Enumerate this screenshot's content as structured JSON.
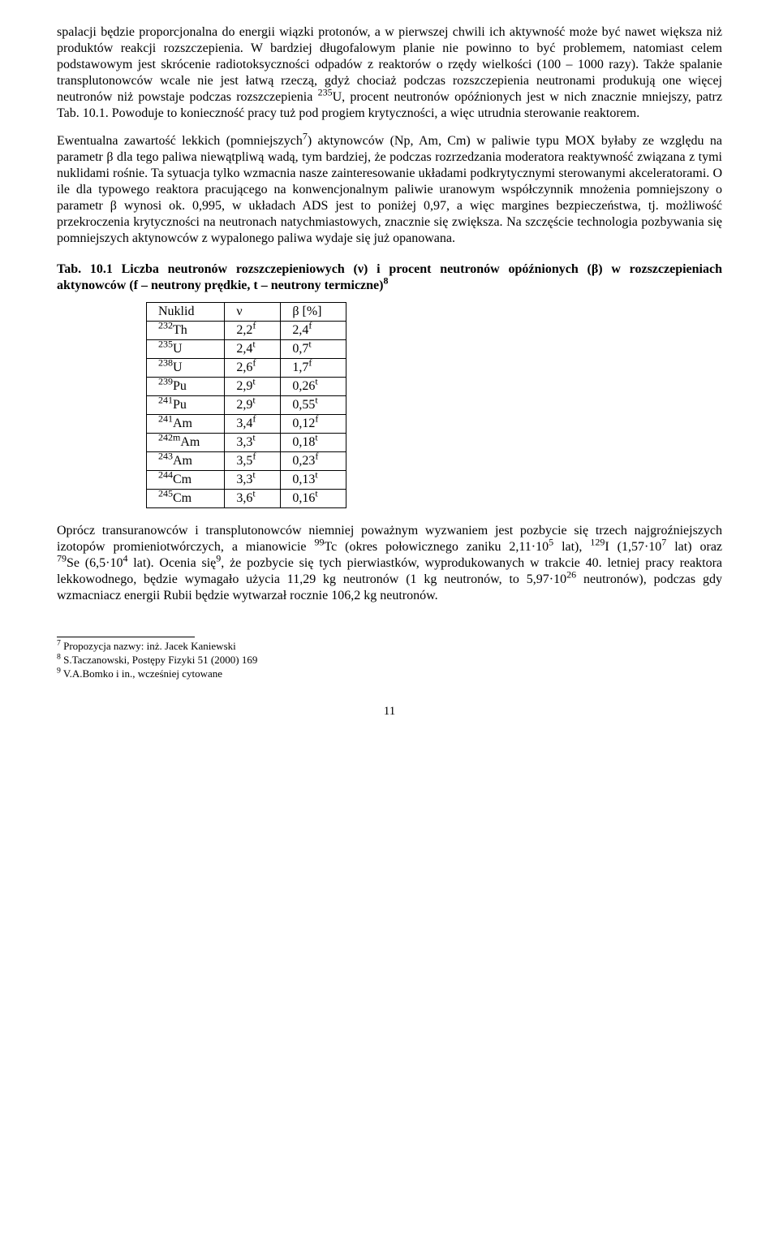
{
  "para1": "spalacji będzie proporcjonalna do energii wiązki protonów, a w pierwszej chwili ich aktywność może być nawet większa niż produktów reakcji rozszczepienia. W bardziej długofalowym planie nie powinno to być problemem, natomiast celem podstawowym jest skrócenie radiotoksyczności odpadów z reaktorów o rzędy wielkości (100 – 1000 razy). Także spalanie transplutonowców wcale nie jest łatwą rzeczą, gdyż chociaż podczas rozszczepienia neutronami produkują one więcej neutronów niż powstaje podczas rozszczepienia ",
  "para1_nuclide_pre": "235",
  "para1_nuclide": "U, procent neutronów opóźnionych jest w nich znacznie mniejszy, patrz Tab. 10.1. Powoduje to konieczność pracy tuż pod progiem krytyczności, a więc utrudnia sterowanie reaktorem.",
  "para2_a": "Ewentualna zawartość lekkich (pomniejszych",
  "para2_fn7": "7",
  "para2_b": ") aktynowców (Np, Am, Cm) w paliwie typu MOX byłaby ze względu na parametr β dla tego paliwa niewątpliwą wadą, tym bardziej, że podczas rozrzedzania moderatora reaktywność związana z tymi nuklidami rośnie. Ta sytuacja tylko wzmacnia nasze zainteresowanie układami  podkrytycznymi sterowanymi akceleratorami.  O ile dla typowego reaktora pracującego na konwencjonalnym paliwie uranowym współczynnik mnożenia pomniejszony o parametr β wynosi ok. 0,995, w układach ADS jest to poniżej 0,97, a więc margines bezpieczeństwa, tj. możliwość przekroczenia krytyczności na neutronach natychmiastowych, znacznie się zwiększa. Na szczęście technologia pozbywania się pomniejszych aktynowców z wypalonego paliwa wydaje się już opanowana.",
  "table_title_a": "Tab. 10.1 Liczba neutronów rozszczepieniowych (ν) i procent neutronów opóźnionych (β) w rozszczepieniach aktynowców (f – neutrony prędkie, t – neutrony termiczne)",
  "table_title_fn": "8",
  "table": {
    "headers": [
      "Nuklid",
      "ν",
      "β [%]"
    ],
    "rows": [
      {
        "pre": "232",
        "el": "Th",
        "nu": "2,2",
        "nu_s": "f",
        "beta": "2,4",
        "beta_s": "f"
      },
      {
        "pre": "235",
        "el": "U",
        "nu": "2,4",
        "nu_s": "t",
        "beta": "0,7",
        "beta_s": "t"
      },
      {
        "pre": "238",
        "el": "U",
        "nu": "2,6",
        "nu_s": "f",
        "beta": "1,7",
        "beta_s": "f"
      },
      {
        "pre": "239",
        "el": "Pu",
        "nu": "2,9",
        "nu_s": "t",
        "beta": "0,26",
        "beta_s": "t"
      },
      {
        "pre": "241",
        "el": "Pu",
        "nu": "2,9",
        "nu_s": "t",
        "beta": "0,55",
        "beta_s": "t"
      },
      {
        "pre": "241",
        "el": "Am",
        "nu": "3,4",
        "nu_s": "f",
        "beta": "0,12",
        "beta_s": "f"
      },
      {
        "pre": "242m",
        "el": "Am",
        "nu": "3,3",
        "nu_s": "t",
        "beta": "0,18",
        "beta_s": "t"
      },
      {
        "pre": "243",
        "el": "Am",
        "nu": "3,5",
        "nu_s": "f",
        "beta": "0,23",
        "beta_s": "f"
      },
      {
        "pre": "244",
        "el": "Cm",
        "nu": "3,3",
        "nu_s": "t",
        "beta": "0,13",
        "beta_s": "t"
      },
      {
        "pre": "245",
        "el": "Cm",
        "nu": "3,6",
        "nu_s": "t",
        "beta": "0,16",
        "beta_s": "t"
      }
    ]
  },
  "para3_a": "Oprócz transuranowców i transplutonowców niemniej poważnym wyzwaniem jest pozbycie się trzech najgroźniejszych izotopów promieniotwórczych, a mianowicie ",
  "para3_tc_pre": "99",
  "para3_tc": "Tc (okres połowicznego zaniku 2,11·10",
  "para3_tc_exp": "5",
  "para3_tc_tail": " lat), ",
  "para3_i_pre": "129",
  "para3_i": "I (1,57·10",
  "para3_i_exp": "7",
  "para3_i_tail": " lat) oraz ",
  "para3_se_pre": "79",
  "para3_se": "Se (6,5·10",
  "para3_se_exp": "4",
  "para3_se_tail": " lat). Ocenia się",
  "para3_fn9": "9",
  "para3_b": ", że pozbycie się tych pierwiastków, wyprodukowanych w trakcie 40. letniej pracy reaktora lekkowodnego, będzie wymagało użycia 11,29 kg neutronów (1 kg neutronów, to 5,97·10",
  "para3_b_exp": "26",
  "para3_c": " neutronów), podczas gdy wzmacniacz energii Rubii będzie wytwarzał rocznie 106,2 kg neutronów.",
  "footnotes": {
    "f7": {
      "num": "7",
      "text": " Propozycja nazwy: inż. Jacek Kaniewski"
    },
    "f8": {
      "num": "8",
      "text": " S.Taczanowski, Postępy Fizyki 51 (2000) 169"
    },
    "f9": {
      "num": "9",
      "text": " V.A.Bomko i in., wcześniej cytowane"
    }
  },
  "page_number": "11"
}
